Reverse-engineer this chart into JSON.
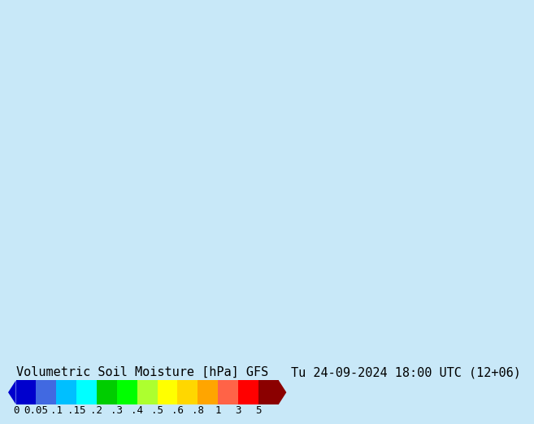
{
  "title_left": "Volumetric Soil Moisture [hPa] GFS",
  "title_right": "Tu 24-09-2024 18:00 UTC (12+06)",
  "colorbar_values": [
    0,
    0.05,
    0.1,
    0.15,
    0.2,
    0.3,
    0.4,
    0.5,
    0.6,
    0.8,
    1,
    3,
    5
  ],
  "colorbar_tick_labels": [
    "0",
    "0.05",
    ".1",
    ".15",
    ".2",
    ".3",
    ".4",
    ".5",
    ".6",
    ".8",
    "1",
    "3",
    "5"
  ],
  "colorbar_colors": [
    "#0000cd",
    "#4169e1",
    "#00bfff",
    "#00ffff",
    "#00cd00",
    "#00ff00",
    "#adff2f",
    "#ffff00",
    "#ffd700",
    "#ffa500",
    "#ff6347",
    "#ff0000",
    "#8b0000"
  ],
  "bg_color": "#c8e8f8",
  "land_color": "#32cd32",
  "font_color": "#000000",
  "font_family": "monospace",
  "title_fontsize": 11,
  "tick_fontsize": 9
}
